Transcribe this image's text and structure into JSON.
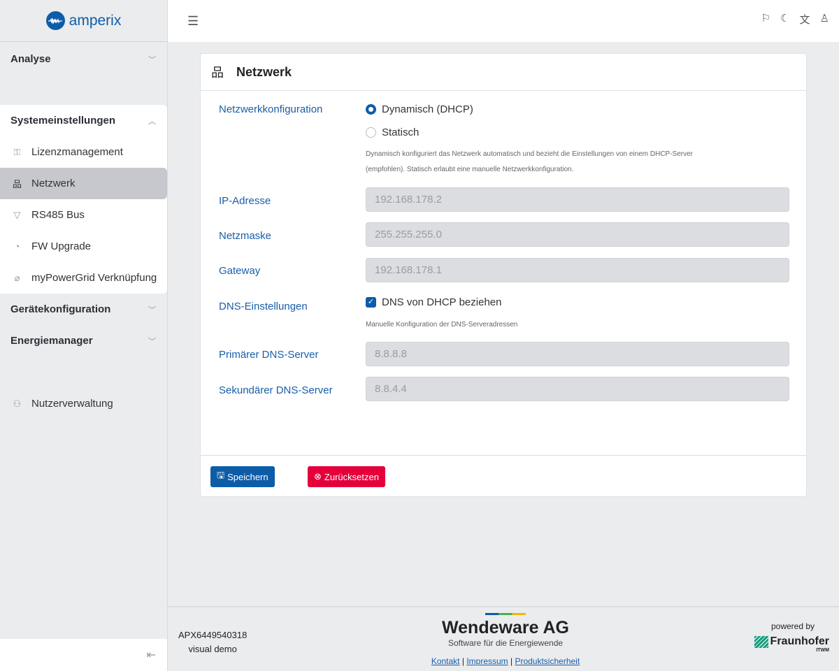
{
  "brand": {
    "name": "amperix"
  },
  "sidebar": {
    "sections": [
      {
        "label": "Analyse"
      },
      {
        "label": "Systemeinstellungen"
      },
      {
        "label": "Gerätekonfiguration"
      },
      {
        "label": "Energiemanager"
      }
    ],
    "items": [
      {
        "label": "Lizenzmanagement",
        "icon": "key-icon"
      },
      {
        "label": "Netzwerk",
        "icon": "network-icon",
        "active": true
      },
      {
        "label": "RS485 Bus",
        "icon": "connector-icon"
      },
      {
        "label": "FW Upgrade",
        "icon": "history-icon"
      },
      {
        "label": "myPowerGrid Verknüpfung",
        "icon": "paperclip-icon"
      }
    ],
    "user_mgmt": "Nutzerverwaltung"
  },
  "card": {
    "title": "Netzwerk",
    "config_label": "Netzwerkkonfiguration",
    "opt_dhcp": "Dynamisch (DHCP)",
    "opt_static": "Statisch",
    "selected": "Dynamisch (DHCP)",
    "help1": "Dynamisch konfiguriert das Netzwerk automatisch und bezieht die Einstellungen von einem DHCP-Server (empfohlen). Statisch erlaubt eine manuelle Netzwerkkonfiguration.",
    "ip_label": "IP-Adresse",
    "ip": "192.168.178.2",
    "mask_label": "Netzmaske",
    "mask": "255.255.255.0",
    "gw_label": "Gateway",
    "gw": "192.168.178.1",
    "dns_label": "DNS-Einstellungen",
    "dns_check": "DNS von DHCP beziehen",
    "dns_checked": true,
    "help2": "Manuelle Konfiguration der DNS-Serveradressen",
    "dns1_label": "Primärer DNS-Server",
    "dns1": "8.8.8.8",
    "dns2_label": "Sekundärer DNS-Server",
    "dns2": "8.8.4.4",
    "save": "Speichern",
    "reset": "Zurücksetzen"
  },
  "colors": {
    "primary": "#0d5ca8",
    "danger": "#e4003a"
  },
  "footer": {
    "serial": "APX6449540318",
    "mode": "visual demo",
    "company": "Wendeware AG",
    "tagline": "Software für die Energiewende",
    "links": [
      "Kontakt",
      "Impressum",
      "Produktsicherheit"
    ],
    "powered": "powered by",
    "partner": "Fraunhofer",
    "partner_sub": "ITWM"
  }
}
